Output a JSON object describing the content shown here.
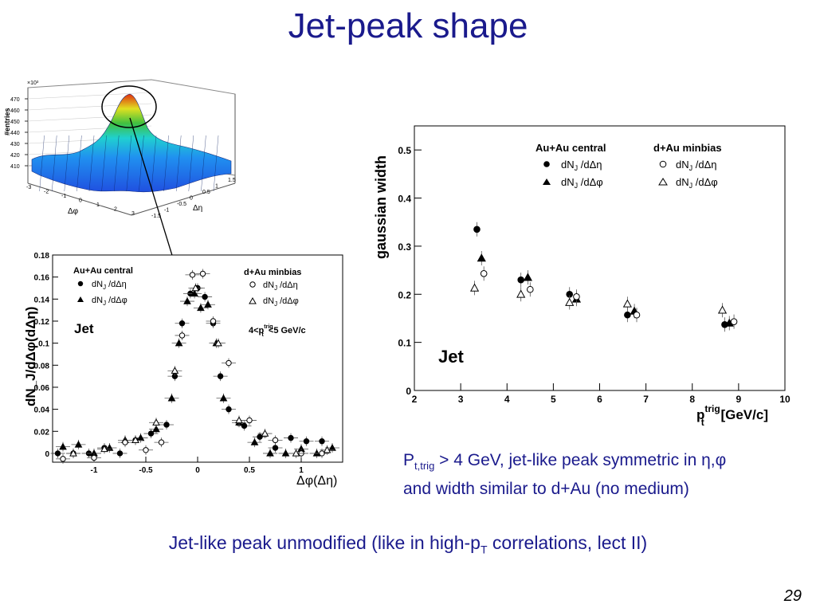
{
  "slide": {
    "title": "Jet-peak shape",
    "page_number": "29",
    "note_line1_prefix": "P",
    "note_line1_sub": "t,trig",
    "note_line1_rest": " > 4 GeV, jet-like peak symmetric in η,φ",
    "note_line2": "and width similar to d+Au (no medium)",
    "bottom_prefix": "Jet-like peak unmodified (like in high-p",
    "bottom_sub": "T",
    "bottom_suffix": " correlations, lect II)"
  },
  "colors": {
    "title_blue": "#1a1a8c",
    "surface_peak": "#e03010",
    "surface_mid": "#40c040",
    "surface_low": "#2050e0"
  },
  "chart_data": [
    {
      "type": "surface",
      "ylabel": "#entries",
      "multiplier": "×10³",
      "z_ticks": [
        "410",
        "420",
        "430",
        "440",
        "450",
        "460",
        "470"
      ],
      "x_label": "Δφ",
      "x_ticks": [
        "-3",
        "-2",
        "-1",
        "0",
        "1",
        "2",
        "3"
      ],
      "y_label": "Δη",
      "y_ticks": [
        "-1.5",
        "-1",
        "-0.5",
        "0",
        "0.5",
        "1",
        "1.5"
      ]
    },
    {
      "type": "scatter",
      "ylabel": "dN_J/dΔφ(dΔη)",
      "xlabel": "Δφ(Δη)",
      "xlim": [
        -1.4,
        1.4
      ],
      "ylim": [
        -0.008,
        0.18
      ],
      "x_ticks": [
        "-1",
        "-0.5",
        "0",
        "0.5",
        "1"
      ],
      "y_ticks": [
        "0",
        "0.02",
        "0.04",
        "0.06",
        "0.08",
        "0.1",
        "0.12",
        "0.14",
        "0.16",
        "0.18"
      ],
      "legend_left_title": "Au+Au central",
      "legend_right_title": "d+Au minbias",
      "legend_deta": "dN",
      "legend_deta_sub": "J",
      "legend_deta_rest": " /dΔη",
      "legend_dphi_rest": " /dΔφ",
      "label": "Jet",
      "cut_label_prefix": "4<p",
      "cut_label_sup": "trig",
      "cut_label_sub": "t",
      "cut_label_rest": "<5 GeV/c",
      "series": [
        {
          "name": "Au+Au central dN_J/dΔη",
          "marker": "filled-circle",
          "x": [
            -1.35,
            -1.2,
            -1.05,
            -0.9,
            -0.75,
            -0.6,
            -0.45,
            -0.3,
            -0.22,
            -0.15,
            -0.07,
            0.0,
            0.07,
            0.15,
            0.22,
            0.3,
            0.45,
            0.6,
            0.75,
            0.9,
            1.05,
            1.2
          ],
          "y": [
            0.0,
            0.0,
            0.0,
            0.005,
            0.0,
            0.012,
            0.018,
            0.026,
            0.07,
            0.118,
            0.145,
            0.15,
            0.142,
            0.118,
            0.07,
            0.04,
            0.025,
            0.015,
            0.005,
            0.014,
            0.011,
            0.011
          ]
        },
        {
          "name": "Au+Au central dN_J/dΔφ",
          "marker": "filled-triangle",
          "x": [
            -1.3,
            -1.15,
            -1.0,
            -0.85,
            -0.7,
            -0.55,
            -0.4,
            -0.25,
            -0.18,
            -0.1,
            -0.03,
            0.03,
            0.1,
            0.18,
            0.25,
            0.4,
            0.55,
            0.7,
            0.85,
            1.0,
            1.15,
            1.3
          ],
          "y": [
            0.006,
            0.008,
            0.0,
            0.005,
            0.012,
            0.014,
            0.022,
            0.05,
            0.1,
            0.138,
            0.145,
            0.132,
            0.135,
            0.1,
            0.05,
            0.028,
            0.01,
            0.0,
            0.0,
            0.004,
            0.0,
            0.005
          ]
        },
        {
          "name": "d+Au minbias dN_J/dΔη",
          "marker": "open-circle",
          "x": [
            -1.3,
            -1.0,
            -0.7,
            -0.5,
            -0.35,
            -0.15,
            -0.05,
            0.05,
            0.15,
            0.3,
            0.5,
            0.75,
            1.0,
            1.2
          ],
          "y": [
            -0.005,
            -0.004,
            0.01,
            0.003,
            0.01,
            0.107,
            0.162,
            0.163,
            0.12,
            0.082,
            0.03,
            0.012,
            0.0,
            0.0
          ]
        },
        {
          "name": "d+Au minbias dN_J/dΔφ",
          "marker": "open-triangle",
          "x": [
            -1.2,
            -0.9,
            -0.6,
            -0.4,
            -0.22,
            -0.02,
            0.2,
            0.4,
            0.65,
            0.95,
            1.25
          ],
          "y": [
            0.0,
            0.004,
            0.012,
            0.028,
            0.075,
            0.15,
            0.1,
            0.03,
            0.018,
            0.0,
            0.003
          ]
        }
      ]
    },
    {
      "type": "scatter",
      "ylabel": "gaussian width",
      "xlabel_prefix": "p",
      "xlabel_sup": "trig",
      "xlabel_sub": "t",
      "xlabel_rest": " [GeV/c]",
      "xlim": [
        2,
        10
      ],
      "ylim": [
        0,
        0.55
      ],
      "x_ticks": [
        "2",
        "3",
        "4",
        "5",
        "6",
        "7",
        "8",
        "9",
        "10"
      ],
      "y_ticks": [
        "0",
        "0.1",
        "0.2",
        "0.3",
        "0.4",
        "0.5"
      ],
      "legend_left_title": "Au+Au central",
      "legend_right_title": "d+Au minbias",
      "legend_deta": "dN",
      "legend_deta_sub": "J",
      "legend_deta_rest": " /dΔη",
      "legend_dphi_rest": " /dΔφ",
      "label": "Jet",
      "series": [
        {
          "name": "Au+Au central dN_J/dΔη",
          "marker": "filled-circle",
          "x": [
            3.35,
            4.3,
            5.35,
            6.6,
            8.7
          ],
          "y": [
            0.335,
            0.23,
            0.2,
            0.157,
            0.137
          ]
        },
        {
          "name": "Au+Au central dN_J/dΔφ",
          "marker": "filled-triangle",
          "x": [
            3.45,
            4.45,
            5.5,
            6.75,
            8.8
          ],
          "y": [
            0.275,
            0.235,
            0.19,
            0.165,
            0.14
          ]
        },
        {
          "name": "d+Au minbias dN_J/dΔη",
          "marker": "open-circle",
          "x": [
            3.5,
            4.5,
            5.5,
            6.8,
            8.9
          ],
          "y": [
            0.243,
            0.21,
            0.195,
            0.157,
            0.143
          ]
        },
        {
          "name": "d+Au minbias dN_J/dΔφ",
          "marker": "open-triangle",
          "x": [
            3.3,
            4.3,
            5.35,
            6.6,
            8.65
          ],
          "y": [
            0.213,
            0.2,
            0.183,
            0.18,
            0.167
          ]
        }
      ]
    }
  ]
}
